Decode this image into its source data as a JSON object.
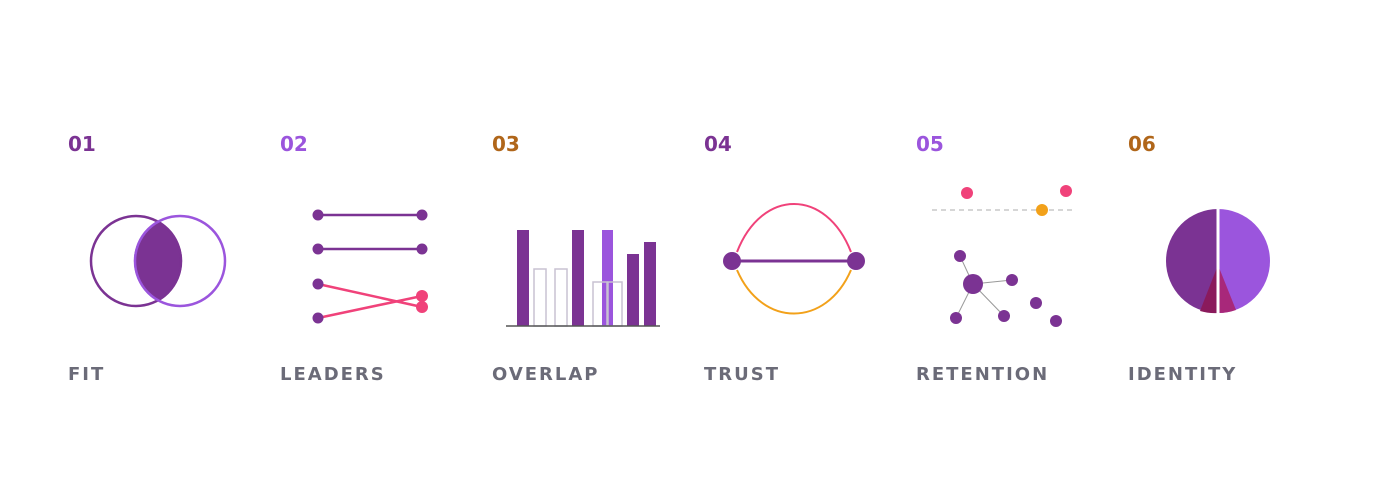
{
  "items": [
    {
      "number": "01",
      "label": "FIT"
    },
    {
      "number": "02",
      "label": "LEADERS"
    },
    {
      "number": "03",
      "label": "OVERLAP"
    },
    {
      "number": "04",
      "label": "TRUST"
    },
    {
      "number": "05",
      "label": "RETENTION"
    },
    {
      "number": "06",
      "label": "IDENTITY"
    }
  ]
}
